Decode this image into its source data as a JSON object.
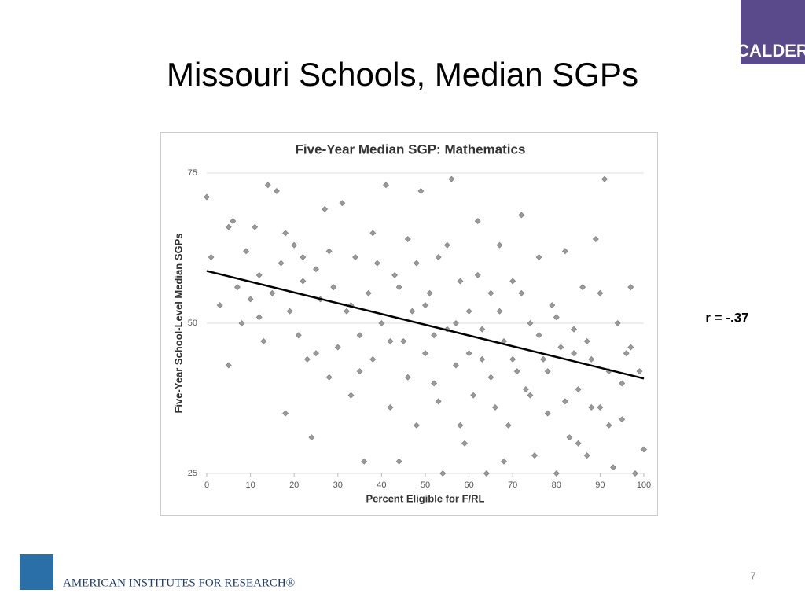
{
  "slide_title": "Missouri Schools, Median SGPs",
  "annotation": "r = -.37",
  "page_number": "7",
  "logo_top": "CALDER",
  "logo_bottom": "AMERICAN INSTITUTES FOR RESEARCH®",
  "chart_data": {
    "type": "scatter",
    "title": "Five-Year Median SGP:  Mathematics",
    "x_label": "Percent Eligible for F/RL",
    "y_label": "Five-Year School-Level Median SGPs",
    "xlim": [
      0,
      100
    ],
    "ylim": [
      25,
      75
    ],
    "xticks": [
      0,
      10,
      20,
      30,
      40,
      50,
      60,
      70,
      80,
      90,
      100
    ],
    "yticks": [
      25,
      50,
      75
    ],
    "grid": true,
    "color": "#9a9a9a",
    "x": [
      0,
      1,
      3,
      5,
      6,
      7,
      8,
      9,
      10,
      11,
      12,
      13,
      14,
      15,
      16,
      17,
      18,
      19,
      20,
      21,
      22,
      23,
      24,
      25,
      26,
      27,
      28,
      29,
      30,
      31,
      32,
      33,
      34,
      35,
      36,
      37,
      38,
      39,
      40,
      41,
      42,
      43,
      44,
      45,
      46,
      47,
      48,
      49,
      50,
      51,
      52,
      53,
      54,
      55,
      56,
      57,
      58,
      59,
      60,
      61,
      62,
      63,
      64,
      65,
      66,
      67,
      68,
      69,
      70,
      71,
      72,
      73,
      74,
      75,
      76,
      77,
      78,
      79,
      80,
      81,
      82,
      83,
      84,
      85,
      86,
      87,
      88,
      89,
      90,
      91,
      92,
      93,
      94,
      95,
      96,
      97,
      98,
      99,
      100,
      5,
      12,
      18,
      22,
      25,
      28,
      33,
      35,
      38,
      42,
      44,
      46,
      48,
      50,
      52,
      53,
      55,
      57,
      58,
      60,
      62,
      63,
      65,
      67,
      68,
      70,
      72,
      74,
      76,
      78,
      80,
      82,
      84,
      85,
      87,
      88,
      90,
      92,
      95,
      97
    ],
    "y": [
      71,
      61,
      53,
      43,
      67,
      56,
      50,
      62,
      54,
      66,
      58,
      47,
      73,
      55,
      72,
      60,
      35,
      52,
      63,
      48,
      57,
      44,
      31,
      59,
      54,
      69,
      41,
      56,
      46,
      70,
      52,
      38,
      61,
      48,
      27,
      55,
      44,
      60,
      50,
      73,
      36,
      58,
      27,
      47,
      64,
      52,
      33,
      72,
      45,
      55,
      40,
      61,
      25,
      49,
      74,
      43,
      57,
      30,
      52,
      38,
      67,
      44,
      25,
      55,
      36,
      63,
      47,
      33,
      57,
      42,
      68,
      39,
      50,
      28,
      61,
      44,
      35,
      53,
      25,
      46,
      62,
      31,
      49,
      39,
      56,
      28,
      44,
      64,
      36,
      74,
      42,
      26,
      50,
      34,
      45,
      56,
      25,
      42,
      29,
      66,
      51,
      65,
      61,
      45,
      62,
      53,
      42,
      65,
      47,
      56,
      41,
      60,
      53,
      48,
      37,
      63,
      50,
      33,
      45,
      58,
      49,
      41,
      52,
      27,
      44,
      55,
      38,
      48,
      42,
      51,
      37,
      45,
      30,
      47,
      36,
      55,
      33,
      40,
      46
    ],
    "trend": {
      "color": "#000000",
      "x": [
        0,
        100
      ],
      "y": [
        58.7,
        40.8
      ]
    }
  }
}
